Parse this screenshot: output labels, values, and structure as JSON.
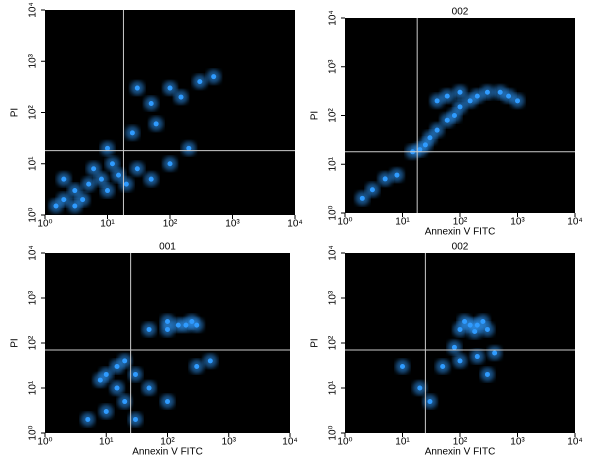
{
  "chart_data": [
    {
      "type": "scatter",
      "ylabel": "PI",
      "xscale": "log",
      "yscale": "log",
      "color": "#2f9bff",
      "xlim": [
        1,
        10000
      ],
      "ylim": [
        1,
        10000
      ],
      "xticks": [
        {
          "value": 1,
          "label": "10⁰"
        },
        {
          "value": 10,
          "label": "10¹"
        },
        {
          "value": 100,
          "label": "10²"
        },
        {
          "value": 1000,
          "label": "10³"
        },
        {
          "value": 10000,
          "label": "10⁴"
        }
      ],
      "yticks": [
        {
          "value": 1,
          "label": "10⁰"
        },
        {
          "value": 10,
          "label": "10¹"
        },
        {
          "value": 100,
          "label": "10²"
        },
        {
          "value": 1000,
          "label": "10³"
        },
        {
          "value": 10000,
          "label": "10⁴"
        }
      ],
      "gates": {
        "x": 18,
        "y": 18
      },
      "x": [
        2,
        3,
        5,
        8,
        4,
        10,
        15,
        3,
        6,
        2,
        20,
        30,
        50,
        100,
        200,
        30,
        100,
        300,
        500,
        50,
        150,
        25,
        10,
        60,
        1.5,
        12
      ],
      "values": [
        2,
        3,
        4,
        5,
        2,
        3,
        6,
        1.5,
        8,
        5,
        4,
        8,
        5,
        10,
        20,
        300,
        300,
        400,
        500,
        150,
        200,
        40,
        20,
        60,
        1.5,
        10
      ]
    },
    {
      "type": "scatter",
      "title": "002",
      "xlabel": "Annexin V FITC",
      "ylabel": "PI",
      "xscale": "log",
      "yscale": "log",
      "color": "#2f9bff",
      "xlim": [
        1,
        10000
      ],
      "ylim": [
        1,
        10000
      ],
      "xticks": [
        {
          "value": 1,
          "label": "10⁰"
        },
        {
          "value": 10,
          "label": "10¹"
        },
        {
          "value": 100,
          "label": "10²"
        },
        {
          "value": 1000,
          "label": "10³"
        },
        {
          "value": 10000,
          "label": "10⁴"
        }
      ],
      "yticks": [
        {
          "value": 1,
          "label": "10⁰"
        },
        {
          "value": 10,
          "label": "10¹"
        },
        {
          "value": 100,
          "label": "10²"
        },
        {
          "value": 1000,
          "label": "10³"
        },
        {
          "value": 10000,
          "label": "10⁴"
        }
      ],
      "gates": {
        "x": 18,
        "y": 18
      },
      "x": [
        20,
        30,
        40,
        60,
        80,
        100,
        150,
        200,
        300,
        500,
        700,
        40,
        60,
        100,
        5,
        8,
        3,
        2,
        1000,
        15,
        25
      ],
      "values": [
        20,
        35,
        50,
        80,
        100,
        150,
        200,
        250,
        300,
        300,
        250,
        200,
        250,
        300,
        5,
        6,
        3,
        2,
        200,
        18,
        25
      ]
    },
    {
      "type": "scatter",
      "title": "001",
      "xlabel": "Annexin V FITC",
      "ylabel": "PI",
      "xscale": "log",
      "yscale": "log",
      "color": "#2f9bff",
      "xlim": [
        1,
        10000
      ],
      "ylim": [
        1,
        10000
      ],
      "xticks": [
        {
          "value": 1,
          "label": "10⁰"
        },
        {
          "value": 10,
          "label": "10¹"
        },
        {
          "value": 100,
          "label": "10²"
        },
        {
          "value": 1000,
          "label": "10³"
        },
        {
          "value": 10000,
          "label": "10⁴"
        }
      ],
      "yticks": [
        {
          "value": 1,
          "label": "10⁰"
        },
        {
          "value": 10,
          "label": "10¹"
        },
        {
          "value": 100,
          "label": "10²"
        },
        {
          "value": 1000,
          "label": "10³"
        },
        {
          "value": 10000,
          "label": "10⁴"
        }
      ],
      "gates": {
        "x": 25,
        "y": 70
      },
      "x": [
        150,
        200,
        300,
        100,
        50,
        250,
        100,
        15,
        10,
        20,
        30,
        8,
        50,
        20,
        10,
        5,
        30,
        100,
        300,
        500,
        15
      ],
      "values": [
        250,
        250,
        250,
        200,
        200,
        300,
        300,
        30,
        20,
        40,
        20,
        15,
        10,
        5,
        3,
        2,
        2,
        5,
        30,
        40,
        10
      ]
    },
    {
      "type": "scatter",
      "title": "002",
      "xlabel": "Annexin V FITC",
      "ylabel": "PI",
      "xscale": "log",
      "yscale": "log",
      "color": "#2f9bff",
      "xlim": [
        1,
        10000
      ],
      "ylim": [
        1,
        10000
      ],
      "xticks": [
        {
          "value": 1,
          "label": "10⁰"
        },
        {
          "value": 10,
          "label": "10¹"
        },
        {
          "value": 100,
          "label": "10²"
        },
        {
          "value": 1000,
          "label": "10³"
        },
        {
          "value": 10000,
          "label": "10⁴"
        }
      ],
      "yticks": [
        {
          "value": 1,
          "label": "10⁰"
        },
        {
          "value": 10,
          "label": "10¹"
        },
        {
          "value": 100,
          "label": "10²"
        },
        {
          "value": 1000,
          "label": "10³"
        },
        {
          "value": 10000,
          "label": "10⁴"
        }
      ],
      "gates": {
        "x": 25,
        "y": 70
      },
      "x": [
        150,
        200,
        250,
        100,
        300,
        180,
        120,
        80,
        50,
        100,
        200,
        300,
        20,
        30,
        400,
        10
      ],
      "values": [
        250,
        250,
        300,
        200,
        200,
        180,
        300,
        80,
        30,
        40,
        50,
        20,
        10,
        5,
        60,
        30
      ]
    }
  ]
}
